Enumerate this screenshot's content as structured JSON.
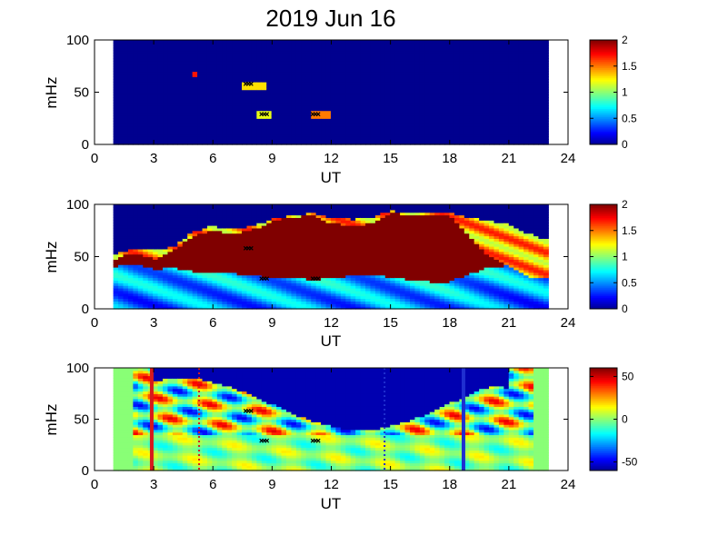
{
  "figure": {
    "title": "2019 Jun 16"
  },
  "colors": {
    "jet": [
      "#00008f",
      "#0000ff",
      "#00ffff",
      "#ffff00",
      "#ff0000",
      "#800000"
    ],
    "marker": "#000000",
    "red_line": "#d7191c",
    "blue_line": "#1f2fd0",
    "background": "#ffffff"
  },
  "chart_data": [
    {
      "type": "heatmap",
      "panel": 1,
      "xlabel": "UT",
      "ylabel": "mHz",
      "xlim": [
        0,
        24
      ],
      "ylim": [
        0,
        100
      ],
      "xticks": [
        0,
        3,
        6,
        9,
        12,
        15,
        18,
        21,
        24
      ],
      "yticks": [
        0,
        50,
        100
      ],
      "data_extent_x": [
        0.95,
        23.0
      ],
      "colorbar": {
        "clim": [
          0,
          2
        ],
        "ticks": [
          0,
          0.5,
          1,
          1.5,
          2
        ],
        "tick_labels": [
          "0",
          "0.5",
          "1",
          "1.5",
          "2"
        ]
      },
      "background_value": 0.0,
      "features": [
        {
          "x": [
            5.0,
            5.3
          ],
          "y": [
            66,
            71
          ],
          "value": 1.7
        },
        {
          "x": [
            7.4,
            8.6
          ],
          "y": [
            52,
            60
          ],
          "value": 1.3
        },
        {
          "x": [
            8.2,
            9.0
          ],
          "y": [
            26,
            32
          ],
          "value": 1.2
        },
        {
          "x": [
            11.0,
            11.9
          ],
          "y": [
            26,
            32
          ],
          "value": 1.5
        }
      ],
      "markers": [
        {
          "x": 7.8,
          "y": 58
        },
        {
          "x": 8.6,
          "y": 29
        },
        {
          "x": 11.2,
          "y": 29
        }
      ]
    },
    {
      "type": "heatmap",
      "panel": 2,
      "xlabel": "UT",
      "ylabel": "mHz",
      "xlim": [
        0,
        24
      ],
      "ylim": [
        0,
        100
      ],
      "xticks": [
        0,
        3,
        6,
        9,
        12,
        15,
        18,
        21,
        24
      ],
      "yticks": [
        0,
        50,
        100
      ],
      "data_extent_x": [
        0.95,
        23.0
      ],
      "colorbar": {
        "clim": [
          0,
          2
        ],
        "ticks": [
          0,
          0.5,
          1,
          1.5,
          2
        ],
        "tick_labels": [
          "0",
          "0.5",
          "1",
          "1.5",
          "2"
        ]
      },
      "profile": {
        "ut": [
          1,
          2,
          3,
          4,
          5,
          6,
          7,
          8,
          9,
          10,
          11,
          12,
          13,
          14,
          15,
          16,
          17,
          18,
          19,
          20,
          21,
          22,
          23
        ],
        "upper_edge_mhz": [
          52,
          58,
          56,
          60,
          74,
          80,
          76,
          80,
          86,
          90,
          92,
          88,
          86,
          88,
          94,
          92,
          92,
          92,
          88,
          84,
          82,
          72,
          66
        ],
        "saturated_top_mhz": [
          48,
          54,
          48,
          56,
          70,
          76,
          72,
          76,
          84,
          88,
          90,
          82,
          80,
          82,
          92,
          90,
          90,
          90,
          70,
          50,
          40,
          30,
          30
        ],
        "saturated_bottom_mhz": [
          40,
          44,
          38,
          40,
          36,
          36,
          34,
          32,
          30,
          30,
          28,
          30,
          32,
          34,
          30,
          28,
          26,
          26,
          34,
          40,
          42,
          44,
          44
        ],
        "floor_value": 0.6
      },
      "markers": [
        {
          "x": 7.8,
          "y": 58
        },
        {
          "x": 8.6,
          "y": 29
        },
        {
          "x": 11.2,
          "y": 29
        }
      ]
    },
    {
      "type": "heatmap",
      "panel": 3,
      "xlabel": "UT",
      "ylabel": "mHz",
      "xlim": [
        0,
        24
      ],
      "ylim": [
        0,
        100
      ],
      "xticks": [
        0,
        3,
        6,
        9,
        12,
        15,
        18,
        21,
        24
      ],
      "yticks": [
        0,
        50,
        100
      ],
      "data_extent_x": [
        0.95,
        23.0
      ],
      "colorbar": {
        "clim": [
          -60,
          60
        ],
        "ticks": [
          -50,
          0,
          50
        ],
        "tick_labels": [
          "-50",
          "0",
          "50"
        ]
      },
      "vertical_lines": [
        {
          "x": 2.9,
          "style": "solid",
          "color": "red"
        },
        {
          "x": 5.3,
          "style": "dotted",
          "color": "red"
        },
        {
          "x": 14.7,
          "style": "dotted",
          "color": "blue"
        },
        {
          "x": 18.7,
          "style": "solid",
          "color": "blue"
        }
      ],
      "markers": [
        {
          "x": 7.8,
          "y": 58
        },
        {
          "x": 8.6,
          "y": 29
        },
        {
          "x": 11.2,
          "y": 29
        }
      ]
    }
  ]
}
